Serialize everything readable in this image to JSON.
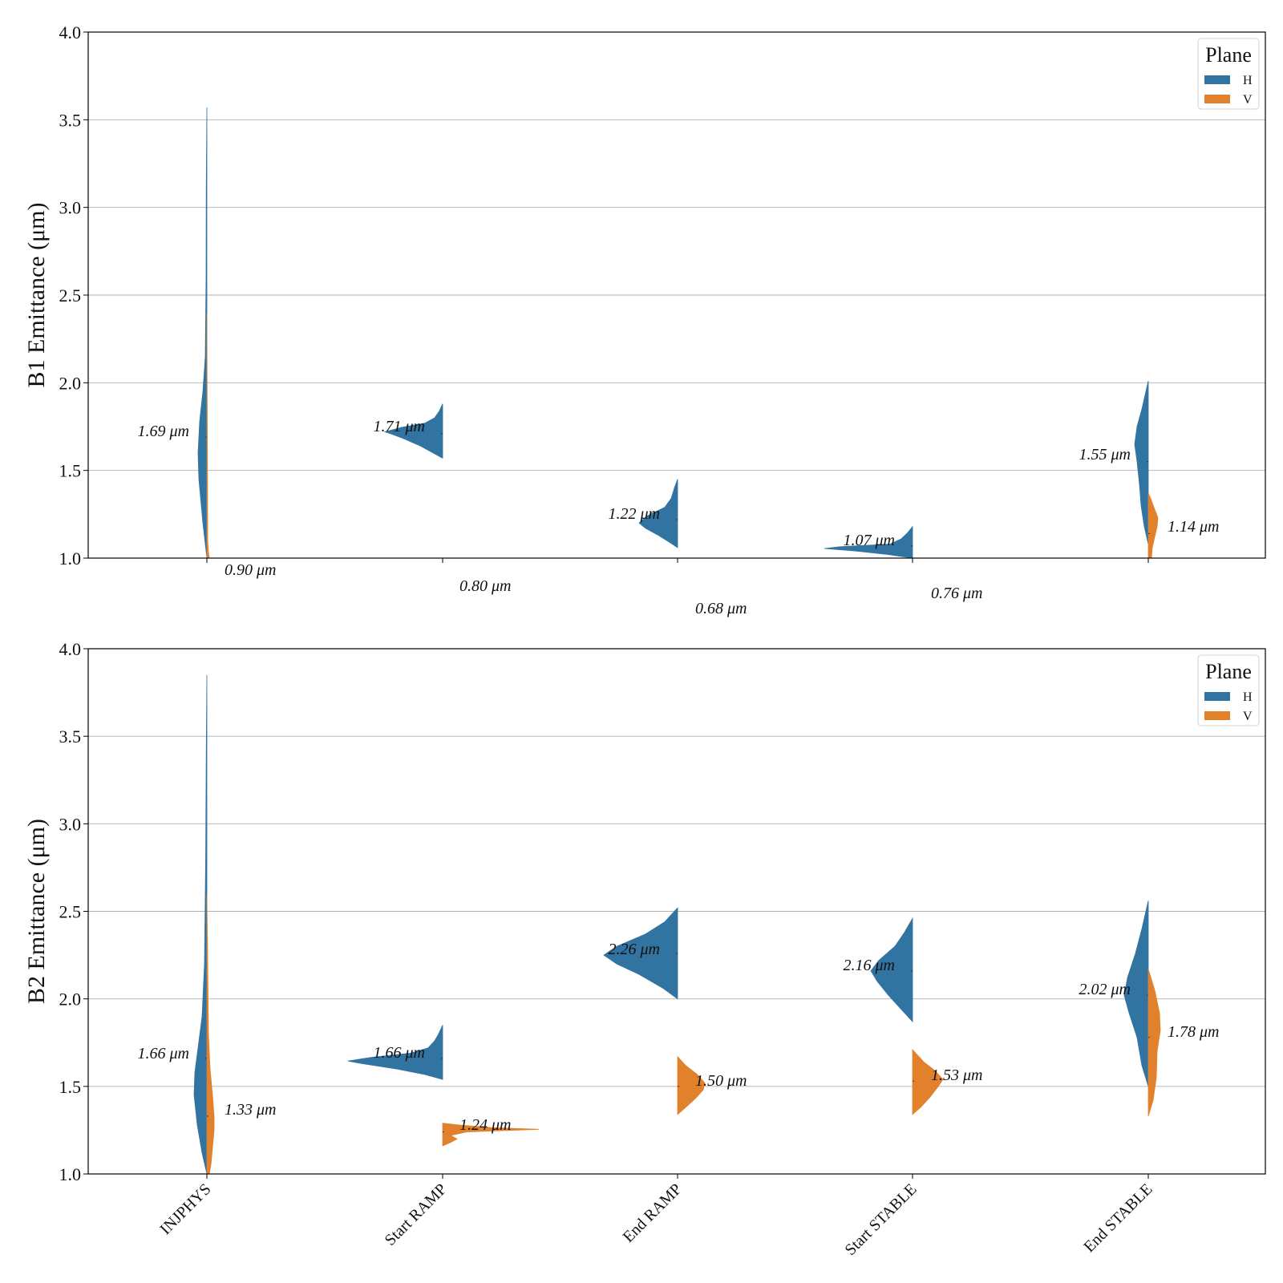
{
  "chart_data": [
    {
      "type": "violin",
      "ylabel": "B1 Emittance (μm)",
      "ylim": [
        1.0,
        4.0
      ],
      "yticks": [
        "1.0",
        "1.5",
        "2.0",
        "2.5",
        "3.0",
        "3.5",
        "4.0"
      ],
      "grid": "horizontal",
      "categories": [
        "INJPHYS",
        "Start RAMP",
        "End RAMP",
        "Start STABLE",
        "End STABLE"
      ],
      "legend": {
        "title": "Plane",
        "placement": "top-right",
        "entries": [
          "H",
          "V"
        ]
      },
      "series": [
        {
          "name": "H",
          "color": "#3274a1",
          "medians": [
            1.69,
            1.71,
            1.22,
            1.07,
            1.55
          ],
          "labels": [
            "1.69 μm",
            "1.71 μm",
            "1.22 μm",
            "1.07 μm",
            "1.55 μm"
          ],
          "ranges": [
            [
              1.0,
              3.57
            ],
            [
              1.57,
              1.88
            ],
            [
              1.06,
              1.45
            ],
            [
              1.0,
              1.18
            ],
            [
              1.08,
              2.01
            ]
          ]
        },
        {
          "name": "V",
          "color": "#e1812c",
          "medians": [
            0.9,
            0.8,
            0.68,
            0.76,
            1.14
          ],
          "labels": [
            "0.90 μm",
            "0.80 μm",
            "0.68 μm",
            "0.76 μm",
            "1.14 μm"
          ],
          "ranges": [
            [
              1.0,
              2.4
            ],
            null,
            null,
            null,
            [
              1.0,
              1.37
            ]
          ]
        }
      ]
    },
    {
      "type": "violin",
      "ylabel": "B2 Emittance (μm)",
      "ylim": [
        1.0,
        4.0
      ],
      "yticks": [
        "1.0",
        "1.5",
        "2.0",
        "2.5",
        "3.0",
        "3.5",
        "4.0"
      ],
      "grid": "horizontal",
      "categories": [
        "INJPHYS",
        "Start RAMP",
        "End RAMP",
        "Start STABLE",
        "End STABLE"
      ],
      "legend": {
        "title": "Plane",
        "placement": "top-right",
        "entries": [
          "H",
          "V"
        ]
      },
      "series": [
        {
          "name": "H",
          "color": "#3274a1",
          "medians": [
            1.66,
            1.66,
            2.26,
            2.16,
            2.02
          ],
          "labels": [
            "1.66 μm",
            "1.66 μm",
            "2.26 μm",
            "2.16 μm",
            "2.02 μm"
          ],
          "ranges": [
            [
              1.0,
              3.85
            ],
            [
              1.54,
              1.85
            ],
            [
              2.0,
              2.52
            ],
            [
              1.87,
              2.46
            ],
            [
              1.5,
              2.56
            ]
          ]
        },
        {
          "name": "V",
          "color": "#e1812c",
          "medians": [
            1.33,
            1.24,
            1.5,
            1.53,
            1.78
          ],
          "labels": [
            "1.33 μm",
            "1.24 μm",
            "1.50 μm",
            "1.53 μm",
            "1.78 μm"
          ],
          "ranges": [
            [
              1.0,
              2.6
            ],
            [
              1.16,
              1.29
            ],
            [
              1.34,
              1.67
            ],
            [
              1.34,
              1.71
            ],
            [
              1.33,
              2.17
            ]
          ]
        }
      ]
    }
  ]
}
